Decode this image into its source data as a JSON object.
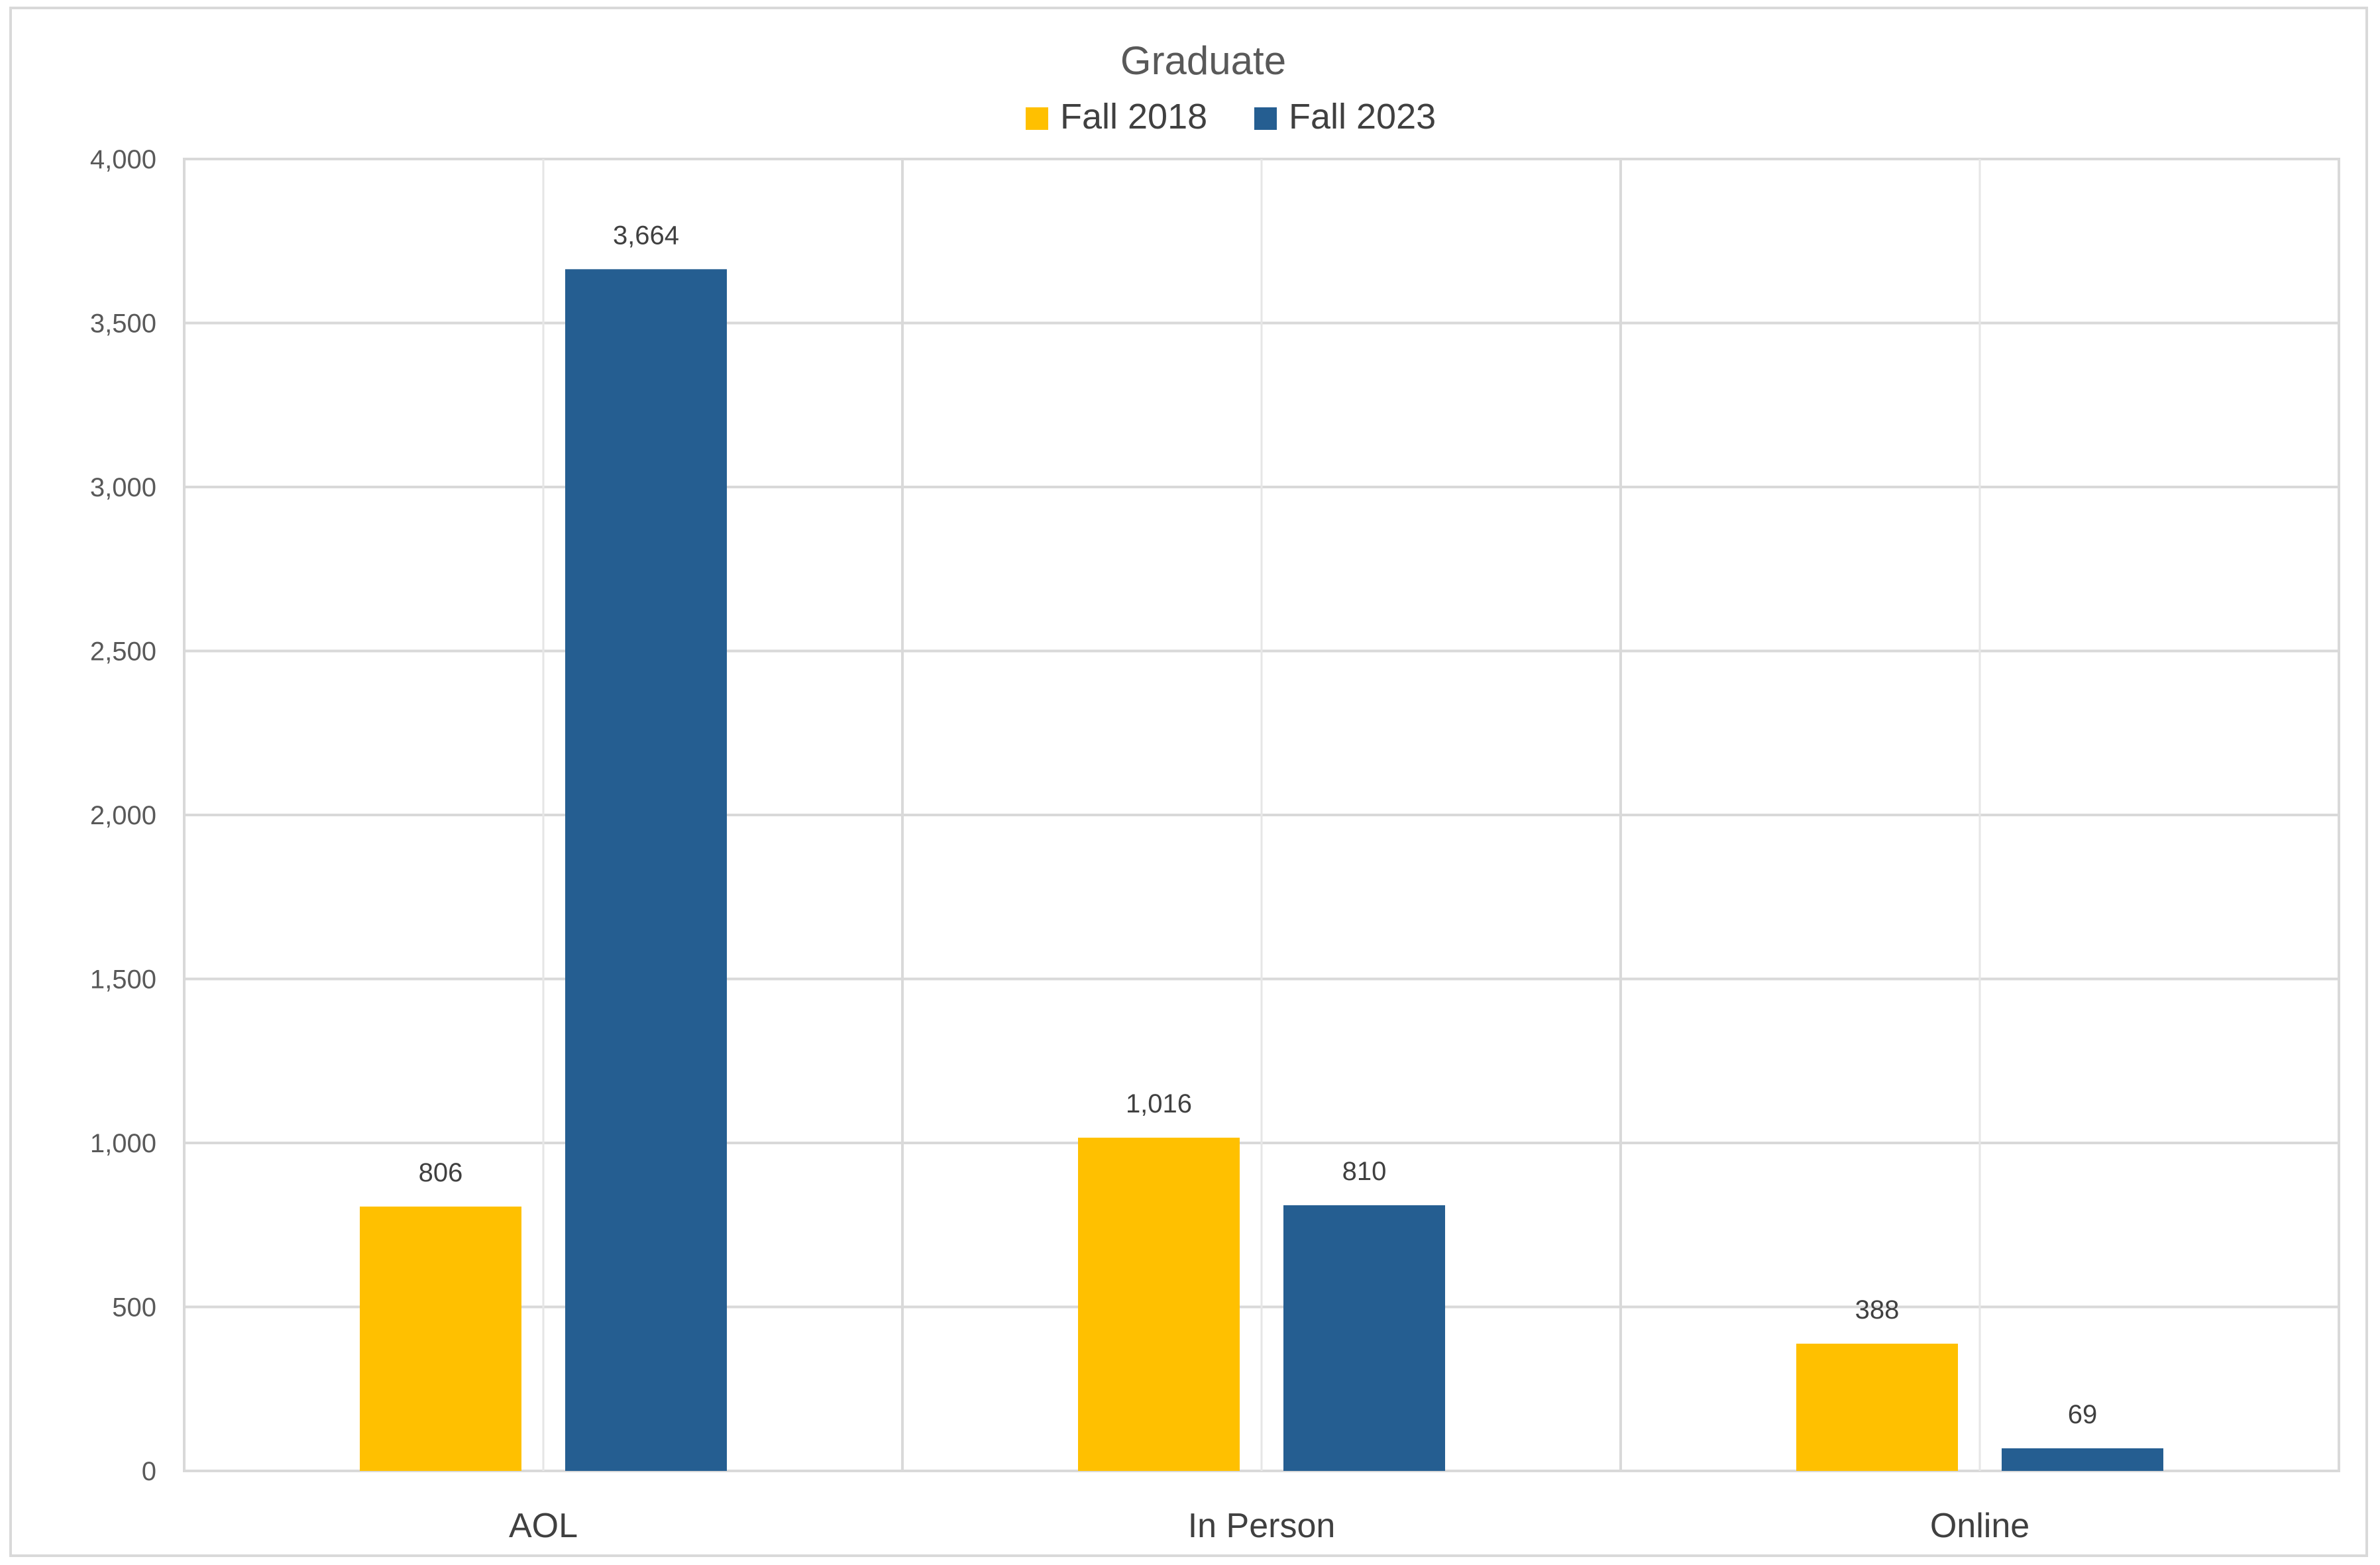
{
  "chart_data": {
    "type": "bar",
    "title": "Graduate",
    "xlabel": "",
    "ylabel": "",
    "categories": [
      "AOL",
      "In Person",
      "Online"
    ],
    "series": [
      {
        "name": "Fall 2018",
        "color": "#ffc000",
        "values": [
          806,
          1016,
          388
        ],
        "labels": [
          "806",
          "1,016",
          "388"
        ]
      },
      {
        "name": "Fall 2023",
        "color": "#255e91",
        "values": [
          3664,
          810,
          69
        ],
        "labels": [
          "3,664",
          "810",
          "69"
        ]
      }
    ],
    "ylim": [
      0,
      4000
    ],
    "yticks": [
      0,
      500,
      1000,
      1500,
      2000,
      2500,
      3000,
      3500,
      4000
    ],
    "ytick_labels": [
      "0",
      "500",
      "1,000",
      "1,500",
      "2,000",
      "2,500",
      "3,000",
      "3,500",
      "4,000"
    ],
    "grid": true,
    "legend_position": "top"
  }
}
